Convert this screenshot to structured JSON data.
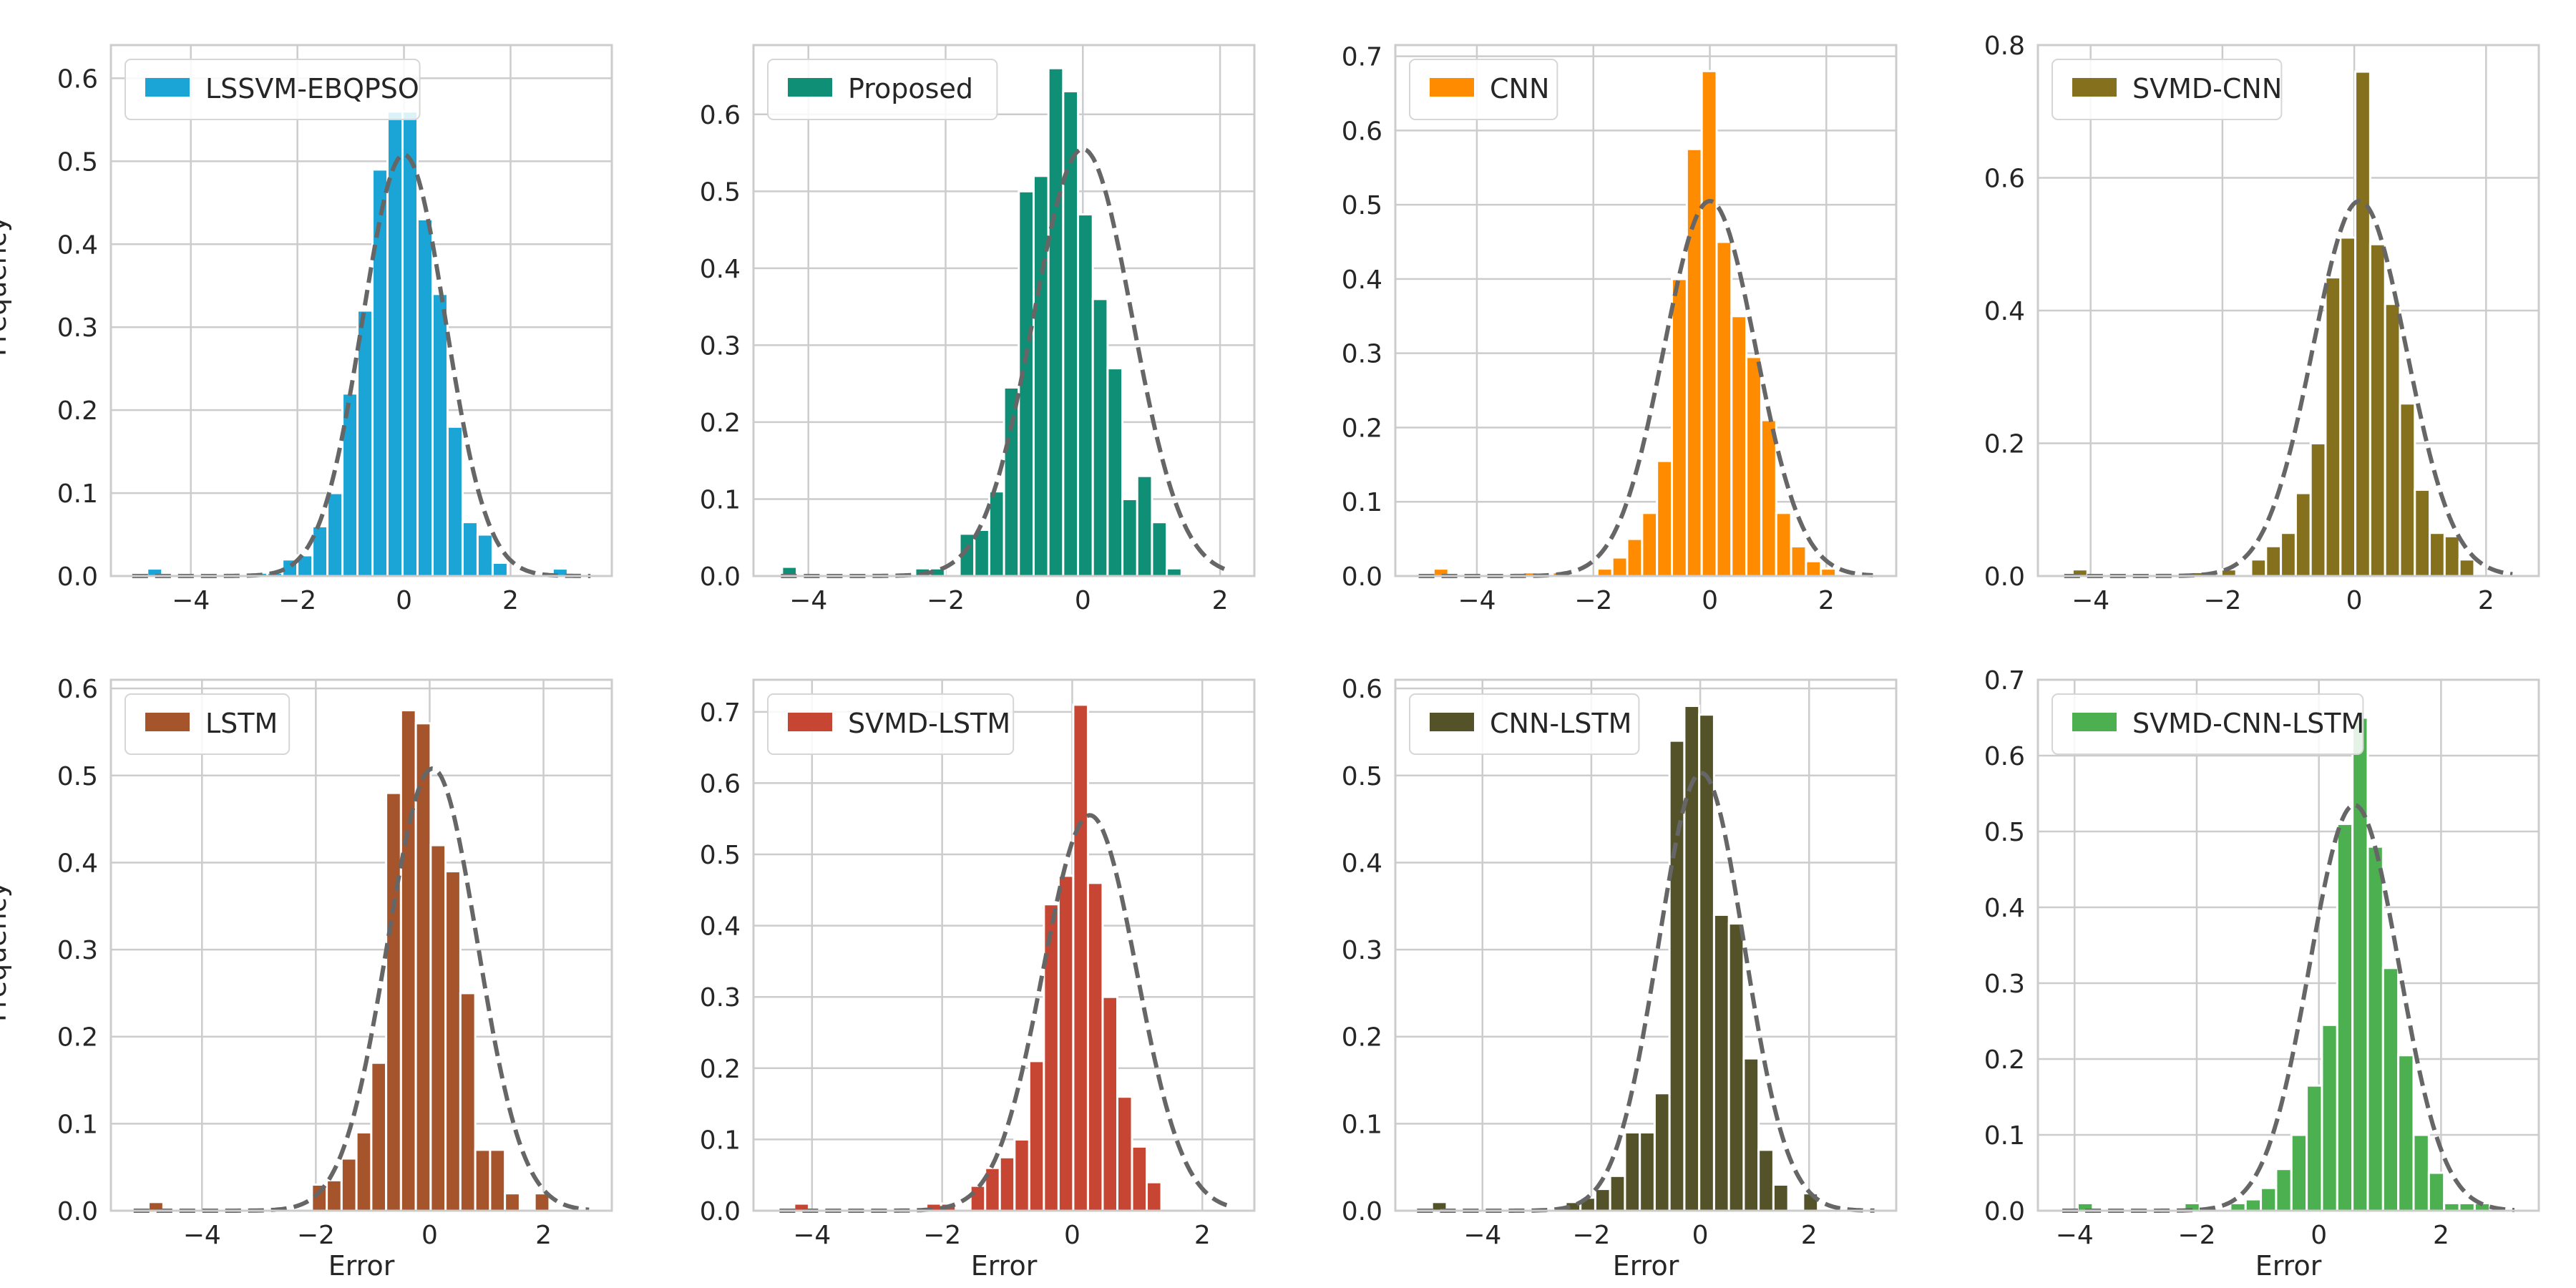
{
  "figure": {
    "ylabel_top": "Frequency",
    "ylabel_bottom": "Frequency",
    "xlabel": "Error"
  },
  "chart_data": [
    {
      "type": "bar",
      "name": "LSSVM-EBQPSO",
      "color": "#1aa5d6",
      "xlim": [
        -5.5,
        3.9
      ],
      "ylim": [
        0,
        0.64
      ],
      "xticks": [
        -4,
        -2,
        0,
        2
      ],
      "yticks": [
        0.0,
        0.1,
        0.2,
        0.3,
        0.4,
        0.5,
        0.6
      ],
      "ytick_labels": [
        "0.0",
        "0.1",
        "0.2",
        "0.3",
        "0.4",
        "0.5",
        "0.6"
      ],
      "xlabel": "",
      "ylabel": "Frequency",
      "legend": "top-left",
      "bins": {
        "start": -5.1,
        "width": 0.2818
      },
      "values": [
        0.0,
        0.009,
        0.0,
        0.0,
        0.0,
        0.0,
        0.0,
        0.0,
        0.004,
        0.004,
        0.02,
        0.025,
        0.06,
        0.1,
        0.22,
        0.32,
        0.49,
        0.56,
        0.56,
        0.43,
        0.34,
        0.18,
        0.065,
        0.05,
        0.016,
        0.0,
        0.0,
        0.0,
        0.009,
        0.0
      ],
      "fit": {
        "mean": 0.0,
        "std": 0.78,
        "amp": 0.508
      }
    },
    {
      "type": "bar",
      "name": "Proposed",
      "color": "#0f8f76",
      "xlim": [
        -4.8,
        2.5
      ],
      "ylim": [
        0,
        0.69
      ],
      "xticks": [
        -4,
        -2,
        0,
        2
      ],
      "yticks": [
        0.0,
        0.1,
        0.2,
        0.3,
        0.4,
        0.5,
        0.6
      ],
      "ytick_labels": [
        "0.0",
        "0.1",
        "0.2",
        "0.3",
        "0.4",
        "0.5",
        "0.6"
      ],
      "xlabel": "",
      "ylabel": "",
      "legend": "top-left",
      "bins": {
        "start": -4.6,
        "width": 0.2157
      },
      "values": [
        0.0,
        0.012,
        0.0,
        0.0,
        0.0,
        0.0,
        0.0,
        0.0,
        0.0,
        0.0,
        0.01,
        0.01,
        0.0,
        0.055,
        0.06,
        0.11,
        0.245,
        0.5,
        0.52,
        0.66,
        0.63,
        0.47,
        0.36,
        0.27,
        0.1,
        0.13,
        0.07,
        0.01,
        0.0,
        0.0
      ],
      "fit": {
        "mean": 0.0,
        "std": 0.72,
        "amp": 0.555
      }
    },
    {
      "type": "bar",
      "name": "CNN",
      "color": "#ff8c00",
      "xlim": [
        -5.4,
        3.2
      ],
      "ylim": [
        0,
        0.715
      ],
      "xticks": [
        -4,
        -2,
        0,
        2
      ],
      "yticks": [
        0.0,
        0.1,
        0.2,
        0.3,
        0.4,
        0.5,
        0.6,
        0.7
      ],
      "ytick_labels": [
        "0.0",
        "0.1",
        "0.2",
        "0.3",
        "0.4",
        "0.5",
        "0.6",
        "0.7"
      ],
      "xlabel": "",
      "ylabel": "",
      "legend": "top-left",
      "bins": {
        "start": -5.0,
        "width": 0.2558
      },
      "values": [
        0.0,
        0.01,
        0.0,
        0.0,
        0.0,
        0.0,
        0.0,
        0.005,
        0.0,
        0.005,
        0.0,
        0.0,
        0.01,
        0.025,
        0.05,
        0.085,
        0.155,
        0.4,
        0.575,
        0.68,
        0.45,
        0.35,
        0.295,
        0.21,
        0.085,
        0.04,
        0.02,
        0.01,
        0.0,
        0.0
      ],
      "fit": {
        "mean": 0.0,
        "std": 0.79,
        "amp": 0.505
      }
    },
    {
      "type": "bar",
      "name": "SVMD-CNN",
      "color": "#85701d",
      "xlim": [
        -4.8,
        2.8
      ],
      "ylim": [
        0,
        0.8
      ],
      "xticks": [
        -4,
        -2,
        0,
        2
      ],
      "yticks": [
        0.0,
        0.2,
        0.4,
        0.6,
        0.8
      ],
      "ytick_labels": [
        "0.0",
        "0.2",
        "0.4",
        "0.6",
        "0.8"
      ],
      "xlabel": "",
      "ylabel": "",
      "legend": "top-left",
      "bins": {
        "start": -4.5,
        "width": 0.2258
      },
      "values": [
        0.0,
        0.01,
        0.0,
        0.0,
        0.0,
        0.0,
        0.0,
        0.0,
        0.0,
        0.006,
        0.0,
        0.01,
        0.0,
        0.025,
        0.045,
        0.065,
        0.125,
        0.2,
        0.45,
        0.51,
        0.76,
        0.5,
        0.41,
        0.26,
        0.13,
        0.065,
        0.06,
        0.025,
        0.0,
        0.0
      ],
      "fit": {
        "mean": 0.08,
        "std": 0.71,
        "amp": 0.565
      }
    },
    {
      "type": "bar",
      "name": "LSTM",
      "color": "#a5542b",
      "xlim": [
        -5.6,
        3.2
      ],
      "ylim": [
        0,
        0.61
      ],
      "xticks": [
        -4,
        -2,
        0,
        2
      ],
      "yticks": [
        0.0,
        0.1,
        0.2,
        0.3,
        0.4,
        0.5,
        0.6
      ],
      "ytick_labels": [
        "0.0",
        "0.1",
        "0.2",
        "0.3",
        "0.4",
        "0.5",
        "0.6"
      ],
      "xlabel": "Error",
      "ylabel": "Frequency",
      "legend": "top-left",
      "bins": {
        "start": -5.2,
        "width": 0.2609
      },
      "values": [
        0.0,
        0.01,
        0.0,
        0.0,
        0.0,
        0.0,
        0.0,
        0.0,
        0.0,
        0.0,
        0.0,
        0.0,
        0.03,
        0.035,
        0.06,
        0.09,
        0.17,
        0.48,
        0.575,
        0.56,
        0.42,
        0.39,
        0.25,
        0.07,
        0.07,
        0.02,
        0.0,
        0.02,
        0.0,
        0.0
      ],
      "fit": {
        "mean": 0.05,
        "std": 0.79,
        "amp": 0.508
      }
    },
    {
      "type": "bar",
      "name": "SVMD-LSTM",
      "color": "#c74633",
      "xlim": [
        -4.9,
        2.8
      ],
      "ylim": [
        0,
        0.745
      ],
      "xticks": [
        -4,
        -2,
        0,
        2
      ],
      "yticks": [
        0.0,
        0.1,
        0.2,
        0.3,
        0.4,
        0.5,
        0.6,
        0.7
      ],
      "ytick_labels": [
        "0.0",
        "0.1",
        "0.2",
        "0.3",
        "0.4",
        "0.5",
        "0.6",
        "0.7"
      ],
      "xlabel": "Error",
      "ylabel": "",
      "legend": "top-left",
      "bins": {
        "start": -4.5,
        "width": 0.2258
      },
      "values": [
        0.0,
        0.01,
        0.0,
        0.0,
        0.0,
        0.0,
        0.0,
        0.0,
        0.0,
        0.0,
        0.01,
        0.01,
        0.0,
        0.035,
        0.06,
        0.075,
        0.1,
        0.21,
        0.43,
        0.47,
        0.71,
        0.46,
        0.3,
        0.16,
        0.09,
        0.04,
        0.0,
        0.0,
        0.0,
        0.0
      ],
      "fit": {
        "mean": 0.27,
        "std": 0.72,
        "amp": 0.555
      }
    },
    {
      "type": "bar",
      "name": "CNN-LSTM",
      "color": "#545228",
      "xlim": [
        -5.6,
        3.6
      ],
      "ylim": [
        0,
        0.61
      ],
      "xticks": [
        -4,
        -2,
        0,
        2
      ],
      "yticks": [
        0.0,
        0.1,
        0.2,
        0.3,
        0.4,
        0.5,
        0.6
      ],
      "ytick_labels": [
        "0.0",
        "0.1",
        "0.2",
        "0.3",
        "0.4",
        "0.5",
        "0.6"
      ],
      "xlabel": "Error",
      "ylabel": "",
      "legend": "top-left",
      "bins": {
        "start": -5.2,
        "width": 0.2727
      },
      "values": [
        0.0,
        0.01,
        0.0,
        0.0,
        0.0,
        0.0,
        0.0,
        0.0,
        0.0,
        0.0,
        0.01,
        0.015,
        0.025,
        0.04,
        0.09,
        0.09,
        0.135,
        0.54,
        0.58,
        0.57,
        0.34,
        0.33,
        0.175,
        0.07,
        0.03,
        0.0,
        0.02,
        0.0,
        0.0,
        0.0
      ],
      "fit": {
        "mean": 0.02,
        "std": 0.79,
        "amp": 0.503
      }
    },
    {
      "type": "bar",
      "name": "SVMD-CNN-LSTM",
      "color": "#4caf50",
      "xlim": [
        -4.6,
        3.6
      ],
      "ylim": [
        0,
        0.7
      ],
      "xticks": [
        -4,
        -2,
        0,
        2
      ],
      "yticks": [
        0.0,
        0.1,
        0.2,
        0.3,
        0.4,
        0.5,
        0.6,
        0.7
      ],
      "ytick_labels": [
        "0.0",
        "0.1",
        "0.2",
        "0.3",
        "0.4",
        "0.5",
        "0.6",
        "0.7"
      ],
      "xlabel": "Error",
      "ylabel": "",
      "legend": "top-left",
      "bins": {
        "start": -4.2,
        "width": 0.25
      },
      "values": [
        0.0,
        0.01,
        0.0,
        0.0,
        0.0,
        0.0,
        0.0,
        0.0,
        0.01,
        0.0,
        0.0,
        0.01,
        0.015,
        0.03,
        0.055,
        0.1,
        0.165,
        0.245,
        0.51,
        0.65,
        0.48,
        0.32,
        0.205,
        0.1,
        0.05,
        0.01,
        0.01,
        0.01,
        0.0,
        0.0
      ],
      "fit": {
        "mean": 0.58,
        "std": 0.73,
        "amp": 0.535
      }
    }
  ]
}
